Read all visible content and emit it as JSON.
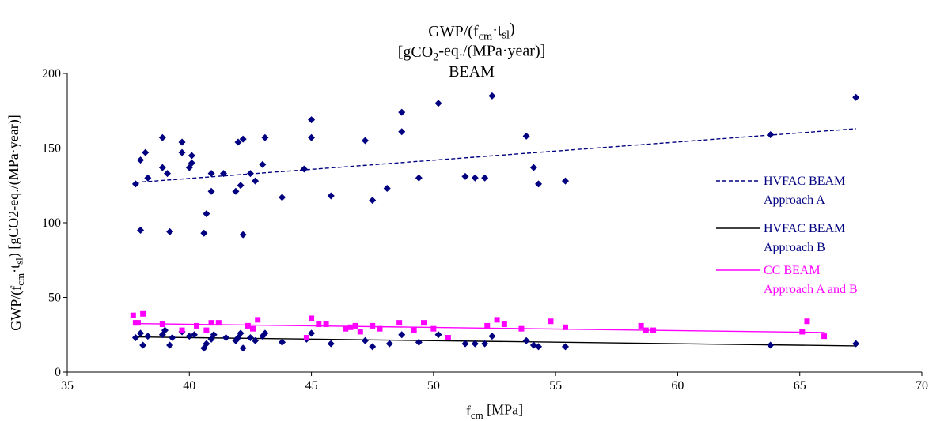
{
  "chart_data": {
    "type": "scatter",
    "title_lines": [
      [
        "GWP/(f",
        {
          "sub": "cm"
        },
        "·t",
        {
          "sub": "sl"
        },
        ")"
      ],
      [
        "[gCO",
        {
          "sub": "2"
        },
        "-eq./(MPa·year)]"
      ],
      [
        "BEAM"
      ]
    ],
    "xlabel": [
      "f",
      {
        "sub": "cm"
      },
      " [MPa]"
    ],
    "ylabel": [
      "GWP/(f",
      {
        "sub": "cm"
      },
      "·t",
      {
        "sub": "sl"
      },
      ") [gCO2-eq./(MPa·year)]"
    ],
    "xlim": [
      35,
      70
    ],
    "ylim": [
      0,
      200
    ],
    "xticks": [
      35,
      40,
      45,
      50,
      55,
      60,
      65,
      70
    ],
    "yticks": [
      0,
      50,
      100,
      150,
      200
    ],
    "grid": false,
    "legend_position": "right",
    "series": [
      {
        "legend_lines": [
          "HVFAC BEAM",
          "Approach A"
        ],
        "marker": "diamond",
        "color": "#000080",
        "text_color": "#000080",
        "line_style": "dashed",
        "line_color": "#000080",
        "trend": [
          [
            37.8,
            127
          ],
          [
            67.3,
            163
          ]
        ],
        "points": [
          [
            37.8,
            126
          ],
          [
            38.0,
            142
          ],
          [
            38.2,
            147
          ],
          [
            38.3,
            130
          ],
          [
            38.0,
            95
          ],
          [
            38.9,
            157
          ],
          [
            38.9,
            137
          ],
          [
            39.1,
            133
          ],
          [
            39.2,
            94
          ],
          [
            39.7,
            154
          ],
          [
            39.7,
            147
          ],
          [
            40.0,
            137
          ],
          [
            40.1,
            140
          ],
          [
            40.1,
            145
          ],
          [
            40.6,
            93
          ],
          [
            40.7,
            106
          ],
          [
            40.9,
            121
          ],
          [
            40.9,
            133
          ],
          [
            41.4,
            133
          ],
          [
            41.9,
            121
          ],
          [
            42.0,
            154
          ],
          [
            42.2,
            156
          ],
          [
            42.1,
            125
          ],
          [
            42.2,
            92
          ],
          [
            42.5,
            133
          ],
          [
            42.7,
            128
          ],
          [
            43.1,
            157
          ],
          [
            43.0,
            139
          ],
          [
            43.8,
            117
          ],
          [
            44.7,
            136
          ],
          [
            45.0,
            157
          ],
          [
            45.0,
            169
          ],
          [
            45.8,
            118
          ],
          [
            47.2,
            155
          ],
          [
            47.5,
            115
          ],
          [
            48.1,
            123
          ],
          [
            48.7,
            174
          ],
          [
            48.7,
            161
          ],
          [
            49.4,
            130
          ],
          [
            50.2,
            180
          ],
          [
            51.3,
            131
          ],
          [
            51.7,
            130
          ],
          [
            52.1,
            130
          ],
          [
            52.4,
            185
          ],
          [
            53.8,
            158
          ],
          [
            54.1,
            137
          ],
          [
            54.3,
            126
          ],
          [
            55.4,
            128
          ],
          [
            63.8,
            159
          ],
          [
            67.3,
            184
          ]
        ]
      },
      {
        "legend_lines": [
          "HVFAC BEAM",
          "Approach B"
        ],
        "marker": "diamond",
        "color": "#000080",
        "text_color": "#000080",
        "line_style": "solid",
        "line_color": "#000000",
        "trend": [
          [
            37.8,
            23.5
          ],
          [
            67.3,
            17.5
          ]
        ],
        "points": [
          [
            37.8,
            23
          ],
          [
            38.0,
            26
          ],
          [
            38.1,
            18
          ],
          [
            38.3,
            24
          ],
          [
            38.9,
            25
          ],
          [
            39.0,
            28
          ],
          [
            39.2,
            18
          ],
          [
            39.3,
            23
          ],
          [
            39.7,
            27
          ],
          [
            40.0,
            24
          ],
          [
            40.2,
            25
          ],
          [
            40.6,
            16
          ],
          [
            40.7,
            19
          ],
          [
            40.9,
            22
          ],
          [
            41.0,
            25
          ],
          [
            41.5,
            23
          ],
          [
            41.9,
            21
          ],
          [
            42.0,
            23
          ],
          [
            42.1,
            26
          ],
          [
            42.2,
            16
          ],
          [
            42.5,
            23
          ],
          [
            42.7,
            21
          ],
          [
            43.0,
            24
          ],
          [
            43.1,
            26
          ],
          [
            43.8,
            20
          ],
          [
            44.8,
            22
          ],
          [
            45.0,
            26
          ],
          [
            45.8,
            19
          ],
          [
            47.2,
            21
          ],
          [
            47.5,
            17
          ],
          [
            48.2,
            19
          ],
          [
            48.7,
            25
          ],
          [
            49.4,
            20
          ],
          [
            50.2,
            25
          ],
          [
            51.3,
            19
          ],
          [
            51.7,
            19
          ],
          [
            52.1,
            19
          ],
          [
            52.4,
            24
          ],
          [
            53.8,
            21
          ],
          [
            54.1,
            18
          ],
          [
            54.3,
            17
          ],
          [
            55.4,
            17
          ],
          [
            63.8,
            18
          ],
          [
            67.3,
            19
          ]
        ]
      },
      {
        "legend_lines": [
          "CC BEAM",
          "Approach A and B"
        ],
        "marker": "square",
        "color": "#ff00ff",
        "text_color": "#ff00ff",
        "line_style": "solid",
        "line_color": "#ff00ff",
        "trend": [
          [
            37.7,
            32.5
          ],
          [
            66.0,
            26.5
          ]
        ],
        "points": [
          [
            37.7,
            38
          ],
          [
            37.8,
            33
          ],
          [
            37.9,
            33
          ],
          [
            38.1,
            39
          ],
          [
            38.9,
            32
          ],
          [
            39.7,
            28
          ],
          [
            40.3,
            31
          ],
          [
            40.7,
            28
          ],
          [
            40.9,
            33
          ],
          [
            41.2,
            33
          ],
          [
            42.4,
            31
          ],
          [
            42.6,
            29
          ],
          [
            42.8,
            35
          ],
          [
            44.8,
            23
          ],
          [
            45.0,
            36
          ],
          [
            45.3,
            32
          ],
          [
            45.6,
            32
          ],
          [
            46.4,
            29
          ],
          [
            46.6,
            30
          ],
          [
            46.8,
            31
          ],
          [
            47.0,
            27
          ],
          [
            47.5,
            31
          ],
          [
            47.8,
            29
          ],
          [
            48.6,
            33
          ],
          [
            49.2,
            28
          ],
          [
            49.6,
            33
          ],
          [
            50.0,
            29
          ],
          [
            50.6,
            23
          ],
          [
            52.2,
            31
          ],
          [
            52.6,
            35
          ],
          [
            52.9,
            32
          ],
          [
            53.6,
            29
          ],
          [
            54.8,
            34
          ],
          [
            55.4,
            30
          ],
          [
            58.5,
            31
          ],
          [
            58.7,
            28
          ],
          [
            59.0,
            28
          ],
          [
            65.1,
            27
          ],
          [
            65.3,
            34
          ],
          [
            66.0,
            24
          ]
        ]
      }
    ]
  }
}
